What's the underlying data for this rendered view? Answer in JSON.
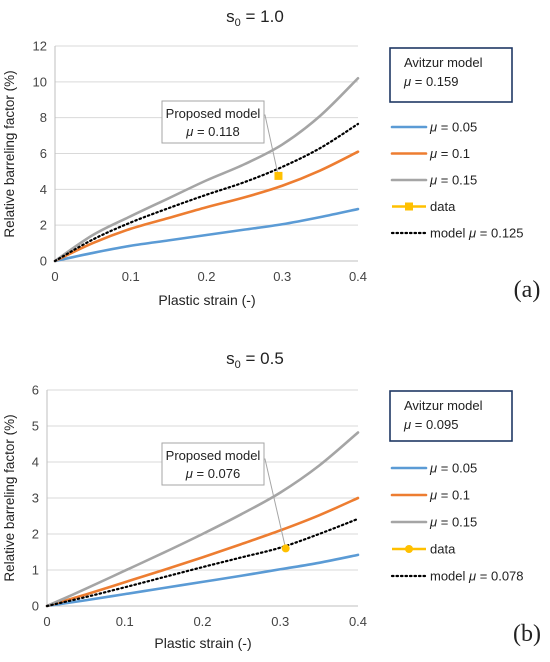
{
  "chart_data": [
    {
      "type": "line",
      "panel_label": "(a)",
      "title_base": "s",
      "title_sub": "0",
      "title_rest": " = 1.0",
      "xlabel": "Plastic strain (-)",
      "ylabel": "Relative barreling factor (%)",
      "xlim": [
        0,
        0.4
      ],
      "ylim": [
        0,
        12
      ],
      "xticks": [
        0,
        0.1,
        0.2,
        0.3,
        0.4
      ],
      "xtick_labels": [
        "0",
        "0.1",
        "0.2",
        "0.3",
        "0.4"
      ],
      "yticks": [
        0,
        2,
        4,
        6,
        8,
        10,
        12
      ],
      "ytick_labels": [
        "0",
        "2",
        "4",
        "6",
        "8",
        "10",
        "12"
      ],
      "grid": "horizontal",
      "legend_position": "right",
      "series": [
        {
          "name": "μ = 0.05",
          "legend_mu": "μ",
          "legend_val": "= 0.05",
          "color": "#5b9bd5",
          "style": "solid",
          "x": [
            0,
            0.05,
            0.1,
            0.15,
            0.2,
            0.25,
            0.3,
            0.35,
            0.4
          ],
          "y": [
            0,
            0.45,
            0.85,
            1.15,
            1.45,
            1.75,
            2.05,
            2.45,
            2.9
          ]
        },
        {
          "name": "μ = 0.1",
          "legend_mu": "μ",
          "legend_val": "= 0.1",
          "color": "#ed7d31",
          "style": "solid",
          "x": [
            0,
            0.05,
            0.1,
            0.15,
            0.2,
            0.25,
            0.3,
            0.35,
            0.4
          ],
          "y": [
            0,
            1.0,
            1.8,
            2.4,
            3.0,
            3.55,
            4.2,
            5.05,
            6.1
          ]
        },
        {
          "name": "μ = 0.15",
          "legend_mu": "μ",
          "legend_val": "= 0.15",
          "color": "#a5a5a5",
          "style": "solid",
          "x": [
            0,
            0.05,
            0.1,
            0.15,
            0.2,
            0.25,
            0.3,
            0.35,
            0.4
          ],
          "y": [
            0,
            1.45,
            2.5,
            3.5,
            4.5,
            5.4,
            6.5,
            8.1,
            10.2
          ]
        },
        {
          "name": "model  μ = 0.125",
          "legend_mu": "model  μ",
          "legend_val": "= 0.125",
          "color": "#000000",
          "style": "dotted",
          "x": [
            0,
            0.05,
            0.1,
            0.15,
            0.2,
            0.25,
            0.3,
            0.35,
            0.4
          ],
          "y": [
            0,
            1.2,
            2.15,
            2.95,
            3.7,
            4.4,
            5.25,
            6.3,
            7.65
          ]
        }
      ],
      "data_points": {
        "name": "data",
        "color": "#ffc000",
        "marker": "square",
        "x": [
          0.295
        ],
        "y": [
          4.75
        ]
      },
      "annotation": {
        "line1": "Proposed model",
        "mu_symbol": "μ",
        "line2": "= 0.118",
        "x": 0.295,
        "y": 4.75
      },
      "avitzur_box": {
        "line1": "Avitzur model",
        "mu_symbol": "μ",
        "line2": "= 0.159"
      }
    },
    {
      "type": "line",
      "panel_label": "(b)",
      "title_base": "s",
      "title_sub": "0",
      "title_rest": " = 0.5",
      "xlabel": "Plastic strain (-)",
      "ylabel": "Relative barreling factor (%)",
      "xlim": [
        0,
        0.4
      ],
      "ylim": [
        0,
        6
      ],
      "xticks": [
        0,
        0.1,
        0.2,
        0.3,
        0.4
      ],
      "xtick_labels": [
        "0",
        "0.1",
        "0.2",
        "0.3",
        "0.4"
      ],
      "yticks": [
        0,
        1,
        2,
        3,
        4,
        5,
        6
      ],
      "ytick_labels": [
        "0",
        "1",
        "2",
        "3",
        "4",
        "5",
        "6"
      ],
      "grid": "horizontal",
      "legend_position": "right",
      "series": [
        {
          "name": "μ = 0.05",
          "legend_mu": "μ",
          "legend_val": "= 0.05",
          "color": "#5b9bd5",
          "style": "solid",
          "x": [
            0,
            0.05,
            0.1,
            0.15,
            0.2,
            0.25,
            0.3,
            0.35,
            0.4
          ],
          "y": [
            0,
            0.16,
            0.33,
            0.5,
            0.67,
            0.84,
            1.02,
            1.2,
            1.42
          ]
        },
        {
          "name": "μ = 0.1",
          "legend_mu": "μ",
          "legend_val": "= 0.1",
          "color": "#ed7d31",
          "style": "solid",
          "x": [
            0,
            0.05,
            0.1,
            0.15,
            0.2,
            0.25,
            0.3,
            0.35,
            0.4
          ],
          "y": [
            0,
            0.32,
            0.66,
            1.0,
            1.35,
            1.72,
            2.1,
            2.52,
            3.0
          ]
        },
        {
          "name": "μ = 0.15",
          "legend_mu": "μ",
          "legend_val": "= 0.15",
          "color": "#a5a5a5",
          "style": "solid",
          "x": [
            0,
            0.05,
            0.1,
            0.15,
            0.2,
            0.25,
            0.3,
            0.35,
            0.4
          ],
          "y": [
            0,
            0.48,
            0.98,
            1.48,
            2.0,
            2.55,
            3.15,
            3.9,
            4.82
          ]
        },
        {
          "name": "model  μ = 0.078",
          "legend_mu": "model  μ",
          "legend_val": "= 0.078",
          "color": "#000000",
          "style": "dotted",
          "x": [
            0,
            0.05,
            0.1,
            0.15,
            0.2,
            0.25,
            0.3,
            0.35,
            0.4
          ],
          "y": [
            0,
            0.25,
            0.52,
            0.8,
            1.08,
            1.35,
            1.62,
            2.0,
            2.42
          ]
        }
      ],
      "data_points": {
        "name": "data",
        "color": "#ffc000",
        "marker": "circle",
        "x": [
          0.307
        ],
        "y": [
          1.6
        ]
      },
      "annotation": {
        "line1": "Proposed model",
        "mu_symbol": "μ",
        "line2": "= 0.076",
        "x": 0.307,
        "y": 1.6
      },
      "avitzur_box": {
        "line1": "Avitzur model",
        "mu_symbol": "μ",
        "line2": "= 0.095"
      }
    }
  ]
}
